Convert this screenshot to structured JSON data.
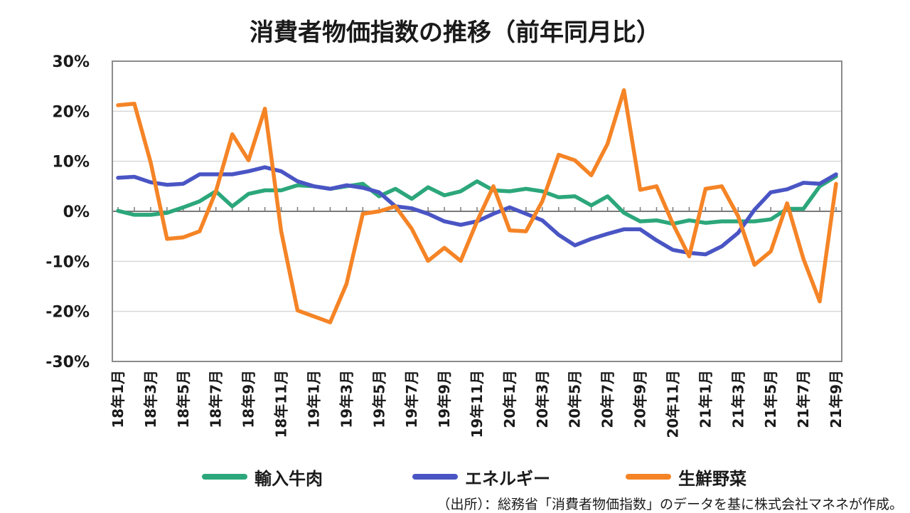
{
  "chart_data": {
    "type": "line",
    "title": "消費者物価指数の推移（前年同月比）",
    "xlabel": "",
    "ylabel": "",
    "ylim": [
      -30,
      30
    ],
    "yticks": [
      "30%",
      "20%",
      "10%",
      "0%",
      "-10%",
      "-20%",
      "-30%"
    ],
    "ytick_values": [
      30,
      20,
      10,
      0,
      -10,
      -20,
      -30
    ],
    "x_tick_labels": [
      "18年1月",
      "18年3月",
      "18年5月",
      "18年7月",
      "18年9月",
      "18年11月",
      "19年1月",
      "19年3月",
      "19年5月",
      "19年7月",
      "19年9月",
      "19年11月",
      "20年1月",
      "20年3月",
      "20年5月",
      "20年7月",
      "20年9月",
      "20年11月",
      "21年1月",
      "21年3月",
      "21年5月",
      "21年7月",
      "21年9月"
    ],
    "categories": [
      "18年1月",
      "18年2月",
      "18年3月",
      "18年4月",
      "18年5月",
      "18年6月",
      "18年7月",
      "18年8月",
      "18年9月",
      "18年10月",
      "18年11月",
      "18年12月",
      "19年1月",
      "19年2月",
      "19年3月",
      "19年4月",
      "19年5月",
      "19年6月",
      "19年7月",
      "19年8月",
      "19年9月",
      "19年10月",
      "19年11月",
      "19年12月",
      "20年1月",
      "20年2月",
      "20年3月",
      "20年4月",
      "20年5月",
      "20年6月",
      "20年7月",
      "20年8月",
      "20年9月",
      "20年10月",
      "20年11月",
      "20年12月",
      "21年1月",
      "21年2月",
      "21年3月",
      "21年4月",
      "21年5月",
      "21年6月",
      "21年7月",
      "21年8月",
      "21年9月"
    ],
    "grid": true,
    "legend_position": "bottom",
    "series": [
      {
        "name": "輸入牛肉",
        "color": "#2ca77b",
        "values": [
          0.1,
          -0.7,
          -0.7,
          -0.3,
          0.8,
          2.0,
          4.0,
          1.0,
          3.5,
          4.2,
          4.2,
          5.2,
          5.0,
          4.5,
          5.0,
          5.5,
          3.0,
          4.5,
          2.5,
          4.8,
          3.2,
          4.0,
          6.0,
          4.2,
          4.0,
          4.5,
          4.0,
          2.8,
          3.0,
          1.2,
          3.0,
          -0.3,
          -2.0,
          -1.8,
          -2.5,
          -1.8,
          -2.3,
          -2.0,
          -2.0,
          -2.0,
          -1.6,
          0.5,
          0.5,
          5.0,
          7.0
        ]
      },
      {
        "name": "エネルギー",
        "color": "#4a55c4",
        "values": [
          6.7,
          6.9,
          5.8,
          5.3,
          5.5,
          7.4,
          7.4,
          7.4,
          8.0,
          8.8,
          8.0,
          6.0,
          5.0,
          4.5,
          5.2,
          4.7,
          3.8,
          1.0,
          0.6,
          -0.5,
          -2.0,
          -2.7,
          -2.0,
          -0.5,
          0.8,
          -0.5,
          -1.8,
          -4.7,
          -6.8,
          -5.5,
          -4.5,
          -3.6,
          -3.6,
          -5.8,
          -7.7,
          -8.3,
          -8.6,
          -7.0,
          -4.3,
          0.3,
          3.8,
          4.4,
          5.7,
          5.5,
          7.4
        ]
      },
      {
        "name": "生鮮野菜",
        "color": "#f58426",
        "values": [
          21.2,
          21.5,
          9.8,
          -5.5,
          -5.2,
          -4.0,
          4.0,
          15.4,
          10.2,
          20.5,
          -4.0,
          -19.8,
          -21.0,
          -22.2,
          -14.5,
          -0.5,
          0.0,
          1.0,
          -3.5,
          -9.9,
          -7.3,
          -9.9,
          -2.0,
          5.0,
          -3.8,
          -4.0,
          2.0,
          11.3,
          10.2,
          7.2,
          13.5,
          24.2,
          4.3,
          5.0,
          -2.5,
          -9.0,
          4.5,
          5.0,
          -1.0,
          -10.7,
          -8.0,
          1.6,
          -9.5,
          -18.0,
          5.5
        ]
      }
    ]
  },
  "source_note": "（出所）：総務省「消費者物価指数」のデータを基に株式会社マネネが作成。"
}
